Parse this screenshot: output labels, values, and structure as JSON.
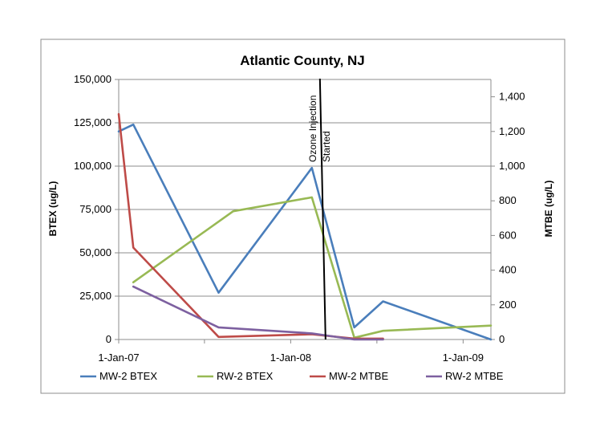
{
  "chart_data": {
    "type": "line",
    "title": "Atlantic County, NJ",
    "ylabel_left": "BTEX (ug/L)",
    "ylabel_right": "MTBE (ug/L)",
    "x_axis": {
      "type": "date",
      "range": [
        "2007-01-01",
        "2009-03-01"
      ],
      "tick_labels": [
        "1-Jan-07",
        "1-Jan-08",
        "1-Jan-09"
      ],
      "tick_dates": [
        "2007-01-01",
        "2008-01-01",
        "2009-01-01"
      ]
    },
    "y_left": {
      "range": [
        0,
        150000
      ],
      "tick_labels": [
        "0",
        "25,000",
        "50,000",
        "75,000",
        "100,000",
        "125,000",
        "150,000"
      ],
      "tick_values": [
        0,
        25000,
        50000,
        75000,
        100000,
        125000,
        150000
      ]
    },
    "y_right": {
      "range": [
        0,
        1500
      ],
      "tick_labels": [
        "0",
        "200",
        "400",
        "600",
        "800",
        "1,000",
        "1,200",
        "1,400"
      ],
      "tick_values": [
        0,
        200,
        400,
        600,
        800,
        1000,
        1200,
        1400
      ]
    },
    "grid": true,
    "legend_position": "bottom",
    "annotation": {
      "lines": [
        "Ozone Injection",
        "Started"
      ],
      "date": "2008-03-15"
    },
    "series": [
      {
        "name": "MW-2 BTEX",
        "axis": "left",
        "color": "#4a7ebb",
        "points": [
          {
            "x": "2007-01-01",
            "y": 120000
          },
          {
            "x": "2007-02-01",
            "y": 124000
          },
          {
            "x": "2007-08-01",
            "y": 27000
          },
          {
            "x": "2008-02-15",
            "y": 99000
          },
          {
            "x": "2008-05-15",
            "y": 7000
          },
          {
            "x": "2008-07-15",
            "y": 22000
          },
          {
            "x": "2009-03-01",
            "y": 0
          }
        ]
      },
      {
        "name": "RW-2 BTEX",
        "axis": "left",
        "color": "#98b954",
        "points": [
          {
            "x": "2007-02-01",
            "y": 33000
          },
          {
            "x": "2007-09-01",
            "y": 74000
          },
          {
            "x": "2008-02-15",
            "y": 82000
          },
          {
            "x": "2008-05-15",
            "y": 1000
          },
          {
            "x": "2008-07-15",
            "y": 5000
          },
          {
            "x": "2009-03-01",
            "y": 8000
          }
        ]
      },
      {
        "name": "MW-2 MTBE",
        "axis": "right",
        "color": "#be4b48",
        "points": [
          {
            "x": "2007-01-01",
            "y": 1300
          },
          {
            "x": "2007-02-01",
            "y": 530
          },
          {
            "x": "2007-08-01",
            "y": 15
          },
          {
            "x": "2008-02-15",
            "y": 30
          },
          {
            "x": "2008-05-15",
            "y": 5
          },
          {
            "x": "2008-07-15",
            "y": 5
          }
        ]
      },
      {
        "name": "RW-2 MTBE",
        "axis": "right",
        "color": "#7d60a0",
        "points": [
          {
            "x": "2007-02-01",
            "y": 305
          },
          {
            "x": "2007-08-01",
            "y": 70
          },
          {
            "x": "2008-02-15",
            "y": 35
          },
          {
            "x": "2008-05-15",
            "y": 0
          },
          {
            "x": "2008-07-15",
            "y": 0
          }
        ]
      }
    ]
  }
}
